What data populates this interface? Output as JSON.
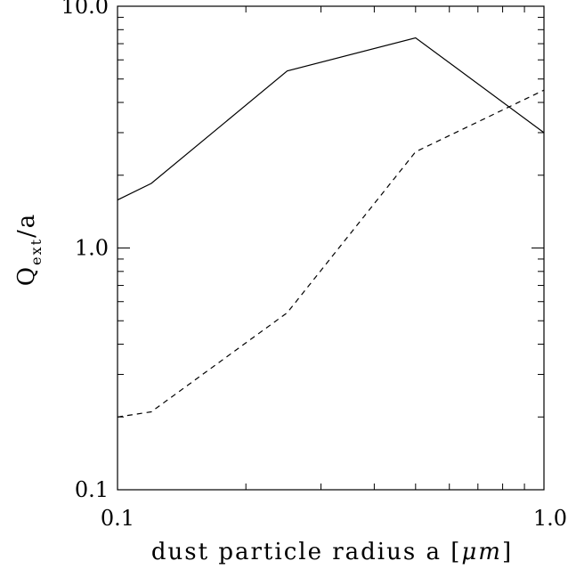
{
  "chart_data": {
    "type": "line",
    "xlabel_prefix": "dust particle radius a [",
    "xlabel_unit": "μm",
    "xlabel_suffix": "]",
    "ylabel_main": "Q",
    "ylabel_sub": "ext",
    "ylabel_rest": "/a",
    "xscale": "log",
    "yscale": "log",
    "xlim": [
      0.1,
      1.0
    ],
    "ylim": [
      0.1,
      10.0
    ],
    "xticks": [
      {
        "value": 0.1,
        "label": "0.1"
      },
      {
        "value": 1.0,
        "label": "1.0"
      }
    ],
    "yticks": [
      {
        "value": 0.1,
        "label": "0.1"
      },
      {
        "value": 1.0,
        "label": "1.0"
      },
      {
        "value": 10.0,
        "label": "10.0"
      }
    ],
    "grid": false,
    "series": [
      {
        "style": "solid",
        "x": [
          0.1,
          0.12,
          0.25,
          0.5,
          1.0
        ],
        "y": [
          1.58,
          1.85,
          5.4,
          7.4,
          3.0
        ]
      },
      {
        "style": "dashed",
        "x": [
          0.1,
          0.12,
          0.25,
          0.5,
          1.0
        ],
        "y": [
          0.2,
          0.21,
          0.54,
          2.5,
          4.5
        ]
      }
    ]
  }
}
